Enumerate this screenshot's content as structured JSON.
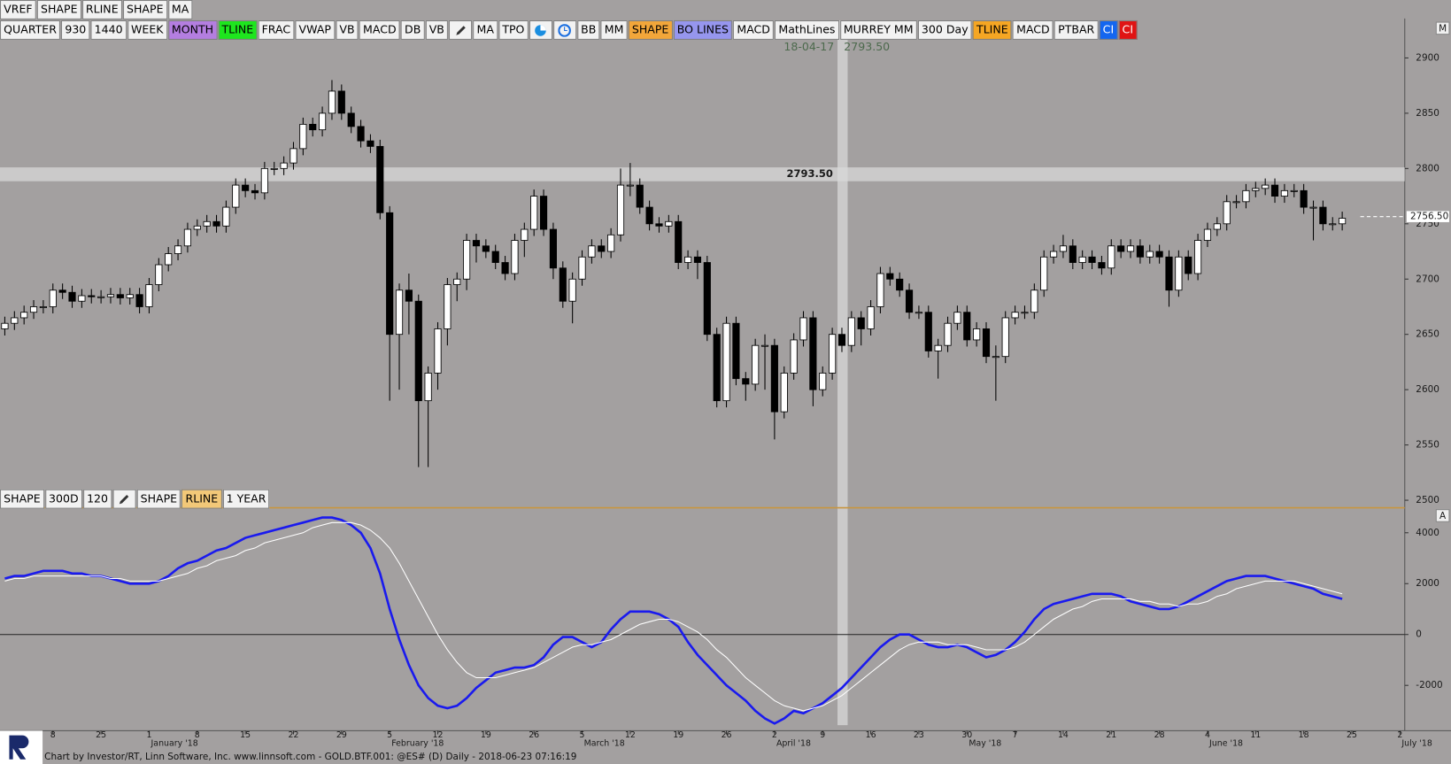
{
  "toolbars": {
    "top": [
      "VREF",
      "SHAPE",
      "RLINE",
      "SHAPE",
      "MA"
    ],
    "main": [
      "QUARTER",
      "930",
      "1440",
      "WEEK",
      "MONTH",
      "TLINE",
      "FRAC",
      "VWAP",
      "VB",
      "MACD",
      "DB",
      "VB",
      "MA",
      "TPO",
      "BB",
      "MM",
      "SHAPE",
      "BO LINES",
      "MACD",
      "MathLines",
      "MURREY MM",
      "300 Day",
      "TLINE",
      "MACD",
      "PTBAR",
      "CI",
      "CI"
    ],
    "lower": [
      "SHAPE",
      "300D",
      "120",
      "SHAPE",
      "RLINE",
      "1 YEAR"
    ],
    "panel_markers": [
      "M",
      "A"
    ]
  },
  "footer": "Chart by Investor/RT, Linn Software, Inc. www.linnsoft.com - GOLD.BTF.001: @ES# (D) Daily - 2018-06-23 07:16:19",
  "chart_data": [
    {
      "type": "candlestick",
      "crosshair": {
        "date": "18-04-17",
        "price": {
          "value": 2793.5,
          "label": "2793.50"
        }
      },
      "last_price": {
        "value": 2756.5,
        "label": "2756.50"
      },
      "ylim": [
        2494,
        2934
      ],
      "yticks": [
        2500,
        2550,
        2600,
        2650,
        2700,
        2750,
        2800,
        2850,
        2900
      ],
      "up_color": "#ffffff",
      "down_color": "#000000",
      "open": [
        2655,
        2660,
        2665,
        2670,
        2675,
        2675,
        2690,
        2688,
        2680,
        2685,
        2684,
        2684,
        2686,
        2683,
        2686,
        2675,
        2695,
        2713,
        2723,
        2730,
        2745,
        2748,
        2752,
        2748,
        2765,
        2785,
        2780,
        2778,
        2800,
        2800,
        2805,
        2818,
        2840,
        2835,
        2850,
        2870,
        2850,
        2838,
        2825,
        2820,
        2760,
        2650,
        2690,
        2680,
        2590,
        2615,
        2655,
        2695,
        2700,
        2735,
        2730,
        2725,
        2715,
        2705,
        2735,
        2745,
        2775,
        2745,
        2710,
        2680,
        2700,
        2720,
        2730,
        2725,
        2740,
        2785,
        2785,
        2765,
        2750,
        2748,
        2752,
        2715,
        2720,
        2715,
        2650,
        2590,
        2660,
        2610,
        2605,
        2640,
        2640,
        2580,
        2615,
        2645,
        2665,
        2600,
        2615,
        2650,
        2640,
        2665,
        2655,
        2675,
        2705,
        2700,
        2690,
        2670,
        2670,
        2635,
        2640,
        2660,
        2670,
        2645,
        2655,
        2630,
        2630,
        2665,
        2670,
        2670,
        2690,
        2720,
        2725,
        2730,
        2715,
        2720,
        2715,
        2710,
        2730,
        2725,
        2730,
        2720,
        2725,
        2720,
        2690,
        2720,
        2705,
        2735,
        2745,
        2750,
        2770,
        2770,
        2780,
        2782,
        2785,
        2775,
        2780,
        2780,
        2765,
        2765,
        2750,
        2750,
        null,
        null,
        null,
        null,
        null,
        null
      ],
      "high": [
        2666,
        2671,
        2676,
        2681,
        2681,
        2696,
        2696,
        2694,
        2691,
        2691,
        2690,
        2692,
        2692,
        2692,
        2692,
        2701,
        2719,
        2729,
        2736,
        2751,
        2754,
        2758,
        2758,
        2771,
        2791,
        2791,
        2786,
        2806,
        2806,
        2811,
        2824,
        2846,
        2846,
        2856,
        2880,
        2876,
        2856,
        2844,
        2831,
        2826,
        2766,
        2696,
        2705,
        2686,
        2621,
        2661,
        2701,
        2706,
        2741,
        2741,
        2736,
        2731,
        2721,
        2741,
        2751,
        2781,
        2781,
        2751,
        2716,
        2706,
        2726,
        2736,
        2736,
        2746,
        2800,
        2805,
        2791,
        2771,
        2756,
        2758,
        2758,
        2726,
        2726,
        2721,
        2656,
        2666,
        2666,
        2616,
        2646,
        2650,
        2646,
        2621,
        2651,
        2671,
        2671,
        2621,
        2656,
        2656,
        2671,
        2671,
        2681,
        2711,
        2711,
        2706,
        2696,
        2676,
        2676,
        2646,
        2666,
        2676,
        2676,
        2661,
        2661,
        2640,
        2671,
        2676,
        2676,
        2696,
        2726,
        2731,
        2740,
        2736,
        2726,
        2726,
        2721,
        2736,
        2736,
        2736,
        2736,
        2731,
        2731,
        2726,
        2726,
        2726,
        2741,
        2751,
        2756,
        2776,
        2776,
        2786,
        2788,
        2791,
        2791,
        2786,
        2786,
        2786,
        2771,
        2771,
        2756,
        2761,
        null,
        null,
        null,
        null,
        null,
        null
      ],
      "low": [
        2649,
        2654,
        2659,
        2664,
        2669,
        2669,
        2682,
        2674,
        2674,
        2678,
        2678,
        2678,
        2677,
        2677,
        2669,
        2669,
        2689,
        2707,
        2717,
        2724,
        2739,
        2742,
        2742,
        2742,
        2759,
        2774,
        2772,
        2772,
        2794,
        2794,
        2799,
        2812,
        2829,
        2829,
        2844,
        2844,
        2832,
        2819,
        2814,
        2754,
        2590,
        2600,
        2650,
        2530,
        2530,
        2600,
        2640,
        2680,
        2690,
        2715,
        2719,
        2709,
        2699,
        2699,
        2720,
        2739,
        2739,
        2700,
        2674,
        2660,
        2694,
        2714,
        2719,
        2719,
        2734,
        2775,
        2759,
        2744,
        2742,
        2742,
        2709,
        2709,
        2700,
        2644,
        2584,
        2584,
        2604,
        2590,
        2599,
        2600,
        2555,
        2574,
        2609,
        2639,
        2585,
        2594,
        2609,
        2634,
        2634,
        2640,
        2649,
        2669,
        2694,
        2684,
        2664,
        2664,
        2629,
        2610,
        2634,
        2654,
        2639,
        2639,
        2624,
        2590,
        2624,
        2659,
        2664,
        2664,
        2684,
        2714,
        2719,
        2709,
        2709,
        2709,
        2704,
        2704,
        2719,
        2719,
        2714,
        2714,
        2714,
        2675,
        2684,
        2699,
        2699,
        2729,
        2739,
        2744,
        2764,
        2764,
        2774,
        2776,
        2769,
        2769,
        2774,
        2759,
        2735,
        2744,
        2744,
        2744,
        null,
        null,
        null,
        null,
        null,
        null
      ],
      "close": [
        2660,
        2665,
        2670,
        2675,
        2675,
        2690,
        2688,
        2680,
        2685,
        2684,
        2684,
        2686,
        2683,
        2686,
        2675,
        2695,
        2713,
        2723,
        2730,
        2745,
        2748,
        2752,
        2748,
        2765,
        2785,
        2780,
        2778,
        2800,
        2800,
        2805,
        2818,
        2840,
        2835,
        2850,
        2870,
        2850,
        2838,
        2825,
        2820,
        2760,
        2650,
        2690,
        2680,
        2590,
        2615,
        2655,
        2695,
        2700,
        2735,
        2730,
        2725,
        2715,
        2705,
        2735,
        2745,
        2775,
        2745,
        2710,
        2680,
        2700,
        2720,
        2730,
        2725,
        2740,
        2785,
        2785,
        2765,
        2750,
        2748,
        2752,
        2715,
        2720,
        2715,
        2650,
        2590,
        2660,
        2610,
        2605,
        2640,
        2640,
        2580,
        2615,
        2645,
        2665,
        2600,
        2615,
        2650,
        2640,
        2665,
        2655,
        2675,
        2705,
        2700,
        2690,
        2670,
        2670,
        2635,
        2640,
        2660,
        2670,
        2645,
        2655,
        2630,
        2630,
        2665,
        2670,
        2670,
        2690,
        2720,
        2725,
        2730,
        2715,
        2720,
        2715,
        2710,
        2730,
        2725,
        2730,
        2720,
        2725,
        2720,
        2690,
        2720,
        2705,
        2735,
        2745,
        2750,
        2770,
        2770,
        2780,
        2782,
        2785,
        2775,
        2780,
        2780,
        2765,
        2765,
        2750,
        2750,
        2755,
        null,
        null,
        null,
        null,
        null,
        null
      ]
    },
    {
      "type": "line",
      "categories": [
        null,
        null,
        null,
        null,
        null,
        "8",
        null,
        null,
        null,
        null,
        "25",
        null,
        null,
        null,
        null,
        "1",
        null,
        null,
        null,
        null,
        "8",
        null,
        null,
        null,
        null,
        "15",
        null,
        null,
        null,
        null,
        "22",
        null,
        null,
        null,
        null,
        "29",
        null,
        null,
        null,
        null,
        "5",
        null,
        null,
        null,
        null,
        "12",
        null,
        null,
        null,
        null,
        "19",
        null,
        null,
        null,
        null,
        "26",
        null,
        null,
        null,
        null,
        "5",
        null,
        null,
        null,
        null,
        "12",
        null,
        null,
        null,
        null,
        "19",
        null,
        null,
        null,
        null,
        "26",
        null,
        null,
        null,
        null,
        "2",
        null,
        null,
        null,
        null,
        "9",
        null,
        null,
        null,
        null,
        "16",
        null,
        null,
        null,
        null,
        "23",
        null,
        null,
        null,
        null,
        "30",
        null,
        null,
        null,
        null,
        "7",
        null,
        null,
        null,
        null,
        "14",
        null,
        null,
        null,
        null,
        "21",
        null,
        null,
        null,
        null,
        "28",
        null,
        null,
        null,
        null,
        "4",
        null,
        null,
        null,
        null,
        "11",
        null,
        null,
        null,
        null,
        "18",
        null,
        null,
        null,
        null,
        "25",
        null,
        null,
        null,
        null,
        "2"
      ],
      "months": [
        null,
        null,
        null,
        null,
        null,
        null,
        null,
        null,
        null,
        null,
        null,
        null,
        null,
        null,
        null,
        "January '18",
        null,
        null,
        null,
        null,
        null,
        null,
        null,
        null,
        null,
        null,
        null,
        null,
        null,
        null,
        null,
        null,
        null,
        null,
        null,
        null,
        null,
        null,
        null,
        null,
        "February '18",
        null,
        null,
        null,
        null,
        null,
        null,
        null,
        null,
        null,
        null,
        null,
        null,
        null,
        null,
        null,
        null,
        null,
        null,
        null,
        "March '18",
        null,
        null,
        null,
        null,
        null,
        null,
        null,
        null,
        null,
        null,
        null,
        null,
        null,
        null,
        null,
        null,
        null,
        null,
        null,
        "April '18",
        null,
        null,
        null,
        null,
        null,
        null,
        null,
        null,
        null,
        null,
        null,
        null,
        null,
        null,
        null,
        null,
        null,
        null,
        null,
        "May '18",
        null,
        null,
        null,
        null,
        null,
        null,
        null,
        null,
        null,
        null,
        null,
        null,
        null,
        null,
        null,
        null,
        null,
        null,
        null,
        null,
        null,
        null,
        null,
        null,
        "June '18",
        null,
        null,
        null,
        null,
        null,
        null,
        null,
        null,
        null,
        null,
        null,
        null,
        null,
        null,
        null,
        null,
        null,
        null,
        null,
        "July '18"
      ],
      "ylim": [
        -3600,
        4945
      ],
      "yticks": [
        -2000,
        0,
        2000,
        4000
      ],
      "series": [
        {
          "color": "#1a1aee",
          "values": [
            2200,
            2300,
            2300,
            2400,
            2500,
            2500,
            2500,
            2400,
            2400,
            2300,
            2300,
            2200,
            2100,
            2000,
            2000,
            2000,
            2100,
            2300,
            2600,
            2800,
            2900,
            3100,
            3300,
            3400,
            3600,
            3800,
            3900,
            4000,
            4100,
            4200,
            4300,
            4400,
            4500,
            4600,
            4600,
            4500,
            4300,
            4000,
            3400,
            2400,
            1000,
            -200,
            -1200,
            -2000,
            -2500,
            -2800,
            -2900,
            -2800,
            -2500,
            -2100,
            -1800,
            -1500,
            -1400,
            -1300,
            -1300,
            -1200,
            -900,
            -400,
            -100,
            -100,
            -300,
            -500,
            -300,
            200,
            600,
            900,
            900,
            900,
            800,
            600,
            300,
            -300,
            -800,
            -1200,
            -1600,
            -2000,
            -2300,
            -2600,
            -3000,
            -3300,
            -3500,
            -3300,
            -3000,
            -3100,
            -2900,
            -2700,
            -2400,
            -2100,
            -1700,
            -1300,
            -900,
            -500,
            -200,
            0,
            0,
            -200,
            -400,
            -500,
            -500,
            -400,
            -500,
            -700,
            -900,
            -800,
            -600,
            -300,
            100,
            600,
            1000,
            1200,
            1300,
            1400,
            1500,
            1600,
            1600,
            1600,
            1500,
            1300,
            1200,
            1100,
            1000,
            1000,
            1100,
            1300,
            1500,
            1700,
            1900,
            2100,
            2200,
            2300,
            2300,
            2300,
            2200,
            2100,
            2000,
            1900,
            1800,
            1600,
            1500,
            1400,
            null,
            null,
            null,
            null,
            null,
            null
          ]
        },
        {
          "color": "#ffffff",
          "values": [
            2100,
            2200,
            2200,
            2300,
            2300,
            2300,
            2300,
            2300,
            2300,
            2300,
            2300,
            2200,
            2200,
            2100,
            2100,
            2100,
            2100,
            2200,
            2300,
            2400,
            2600,
            2700,
            2900,
            3000,
            3100,
            3300,
            3400,
            3600,
            3700,
            3800,
            3900,
            4000,
            4200,
            4300,
            4400,
            4400,
            4400,
            4300,
            4100,
            3800,
            3400,
            2800,
            2100,
            1400,
            700,
            0,
            -600,
            -1100,
            -1500,
            -1700,
            -1700,
            -1700,
            -1600,
            -1500,
            -1400,
            -1300,
            -1100,
            -900,
            -700,
            -500,
            -400,
            -400,
            -300,
            -200,
            0,
            200,
            400,
            500,
            600,
            600,
            500,
            300,
            100,
            -200,
            -600,
            -900,
            -1300,
            -1700,
            -2000,
            -2300,
            -2600,
            -2800,
            -2900,
            -3000,
            -2900,
            -2800,
            -2600,
            -2400,
            -2100,
            -1800,
            -1500,
            -1200,
            -900,
            -600,
            -400,
            -300,
            -300,
            -300,
            -400,
            -400,
            -400,
            -500,
            -600,
            -600,
            -600,
            -500,
            -300,
            0,
            300,
            600,
            800,
            1000,
            1100,
            1300,
            1400,
            1400,
            1400,
            1400,
            1300,
            1300,
            1200,
            1200,
            1100,
            1200,
            1200,
            1300,
            1500,
            1600,
            1800,
            1900,
            2000,
            2100,
            2100,
            2100,
            2100,
            2000,
            1900,
            1800,
            1700,
            1600,
            null,
            null,
            null,
            null,
            null,
            null
          ]
        }
      ]
    }
  ]
}
